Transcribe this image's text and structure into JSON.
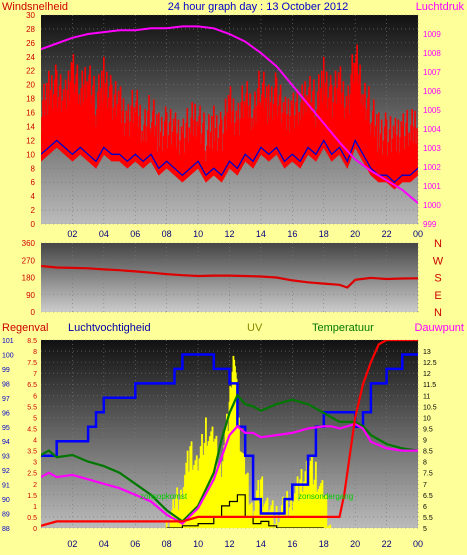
{
  "title": "24 hour graph day : 13 October 2012",
  "colors": {
    "wind": "#ff0000",
    "gust": "#ff0000",
    "wind_avg": "#0000cc",
    "pressure": "#ff00ff",
    "direction": "#dd0000",
    "rain": "#ff0000",
    "humidity": "#0000ff",
    "uv": "#ffff00",
    "solar": "#000000",
    "temperature": "#007700",
    "dewpoint": "#ff00ff",
    "background": "#ffff99",
    "title": "#0000cc"
  },
  "time_ticks": [
    "02",
    "04",
    "06",
    "08",
    "10",
    "12",
    "14",
    "16",
    "18",
    "20",
    "22",
    "00"
  ],
  "chart_data": [
    {
      "type": "line",
      "name": "wind-pressure",
      "xlabel": "",
      "ylabel_left": "Windsnelheid",
      "ylabel_right": "Luchtdruk",
      "x_range": [
        0,
        24
      ],
      "ylim_left": [
        0,
        30
      ],
      "yticks_left": [
        0,
        2,
        4,
        6,
        8,
        10,
        12,
        14,
        16,
        18,
        20,
        22,
        24,
        26,
        28,
        30
      ],
      "ylim_right": [
        999,
        1010
      ],
      "yticks_right": [
        999,
        1000,
        1001,
        1002,
        1003,
        1004,
        1005,
        1006,
        1007,
        1008,
        1009
      ],
      "series": [
        {
          "key": "wind_avg",
          "axis": "left",
          "x": [
            0,
            0.5,
            1,
            1.5,
            2,
            2.5,
            3,
            3.5,
            4,
            4.5,
            5,
            5.5,
            6,
            6.5,
            7,
            7.5,
            8,
            8.5,
            9,
            9.5,
            10,
            10.5,
            11,
            11.5,
            12,
            12.5,
            13,
            13.5,
            14,
            14.5,
            15,
            15.5,
            16,
            16.5,
            17,
            17.5,
            18,
            18.5,
            19,
            19.5,
            20,
            20.5,
            21,
            21.5,
            22,
            22.5,
            23,
            23.5,
            24
          ],
          "y": [
            10,
            11,
            12,
            11,
            10,
            11,
            10,
            9,
            11,
            10,
            10,
            9,
            10,
            9,
            10,
            8,
            9,
            8,
            7,
            8,
            9,
            7,
            8,
            7,
            9,
            8,
            10,
            9,
            11,
            10,
            11,
            9,
            10,
            9,
            11,
            10,
            12,
            10,
            11,
            9,
            12,
            10,
            8,
            7,
            7,
            6,
            7,
            7,
            8
          ]
        },
        {
          "key": "gust",
          "axis": "left",
          "x": [
            0,
            0.5,
            1,
            1.5,
            2,
            2.5,
            3,
            3.5,
            4,
            4.5,
            5,
            5.5,
            6,
            6.5,
            7,
            7.5,
            8,
            8.5,
            9,
            9.5,
            10,
            10.5,
            11,
            11.5,
            12,
            12.5,
            13,
            13.5,
            14,
            14.5,
            15,
            15.5,
            16,
            16.5,
            17,
            17.5,
            18,
            18.5,
            19,
            19.5,
            20,
            20.5,
            21,
            21.5,
            22,
            22.5,
            23,
            23.5,
            24
          ],
          "y": [
            16,
            19,
            20,
            17,
            23,
            18,
            22,
            17,
            21,
            18,
            17,
            15,
            17,
            14,
            16,
            13,
            14,
            13,
            13,
            14,
            16,
            12,
            14,
            13,
            17,
            15,
            18,
            16,
            20,
            17,
            19,
            15,
            17,
            16,
            20,
            17,
            21,
            18,
            20,
            17,
            24,
            19,
            16,
            13,
            13,
            12,
            14,
            13,
            15
          ]
        },
        {
          "key": "pressure",
          "axis": "right",
          "x": [
            0,
            1,
            2,
            3,
            4,
            5,
            6,
            7,
            8,
            9,
            10,
            11,
            12,
            13,
            14,
            15,
            16,
            17,
            18,
            19,
            20,
            21,
            22,
            23,
            24
          ],
          "y": [
            1008.2,
            1008.5,
            1008.8,
            1009.0,
            1009.1,
            1009.2,
            1009.2,
            1009.3,
            1009.3,
            1009.4,
            1009.4,
            1009.3,
            1009.0,
            1008.6,
            1008.0,
            1007.3,
            1006.3,
            1005.3,
            1004.3,
            1003.3,
            1002.4,
            1001.8,
            1001.3,
            1000.8,
            1000.1
          ]
        }
      ]
    },
    {
      "type": "line",
      "name": "wind-direction",
      "x_range": [
        0,
        24
      ],
      "ylim": [
        0,
        360
      ],
      "yticks": [
        0,
        90,
        180,
        270,
        360
      ],
      "compass_labels": [
        "N",
        "W",
        "S",
        "E",
        "N"
      ],
      "series": [
        {
          "key": "direction",
          "x": [
            0,
            1,
            2,
            3,
            4,
            5,
            6,
            7,
            8,
            9,
            10,
            11,
            12,
            13,
            14,
            15,
            16,
            17,
            18,
            19,
            19.5,
            20,
            21,
            22,
            23,
            24
          ],
          "y": [
            240,
            232,
            230,
            228,
            222,
            218,
            212,
            205,
            198,
            192,
            188,
            190,
            190,
            188,
            185,
            180,
            165,
            155,
            148,
            142,
            128,
            168,
            178,
            172,
            175,
            176
          ]
        }
      ]
    },
    {
      "type": "line",
      "name": "rain-humidity-uv-temperature",
      "labels": {
        "rain": "Regenval",
        "humidity": "Luchtvochtigheid",
        "uv": "UV",
        "temperature": "Temperatuur",
        "dewpoint": "Dauwpunt"
      },
      "annotations": [
        "zonsopkomst",
        "zonsondergang"
      ],
      "x_range": [
        0,
        24
      ],
      "ylim_humidity": [
        88,
        101
      ],
      "yticks_humidity": [
        88,
        89,
        90,
        91,
        92,
        93,
        94,
        95,
        96,
        97,
        98,
        99,
        100,
        101
      ],
      "ylim_rain": [
        0,
        8.5
      ],
      "yticks_rain": [
        0,
        0.5,
        1,
        1.5,
        2,
        2.5,
        3,
        3.5,
        4,
        4.5,
        5,
        5.5,
        6,
        6.5,
        7,
        7.5,
        8,
        8.5
      ],
      "ylim_temp": [
        5,
        13.5
      ],
      "yticks_temp": [
        5,
        5.5,
        6,
        6.5,
        7,
        7.5,
        8,
        8.5,
        9,
        9.5,
        10,
        10.5,
        11,
        11.5,
        12,
        12.5,
        13
      ],
      "series": [
        {
          "key": "humidity",
          "axis": "humidity",
          "x": [
            0,
            1,
            2,
            3,
            3.5,
            4,
            5,
            6,
            7,
            8,
            8.5,
            9,
            10,
            10.5,
            11,
            12,
            12.5,
            13,
            13.5,
            14,
            15,
            15.5,
            16,
            17,
            17.5,
            18,
            18.5,
            19,
            20,
            20.5,
            21,
            22,
            23,
            24
          ],
          "y": [
            93,
            94,
            94,
            95,
            96,
            97,
            97,
            98,
            98,
            98,
            99,
            100,
            100,
            100,
            99,
            98,
            95,
            93,
            90,
            89,
            89,
            90,
            91,
            93,
            95,
            96,
            96,
            96,
            95,
            96,
            98,
            99,
            100,
            100
          ]
        },
        {
          "key": "rain",
          "axis": "rain",
          "x": [
            0,
            1,
            2,
            3,
            4,
            5,
            6,
            7,
            8,
            9,
            10,
            11,
            12,
            13,
            14,
            15,
            16,
            17,
            18,
            19,
            19.3,
            19.6,
            20,
            20.5,
            21,
            21.5,
            22,
            23,
            24
          ],
          "y": [
            0.1,
            0.3,
            0.3,
            0.3,
            0.3,
            0.3,
            0.3,
            0.3,
            0.3,
            0.3,
            0.5,
            0.5,
            0.5,
            0.5,
            0.5,
            0.5,
            0.5,
            0.5,
            0.5,
            0.5,
            1.5,
            3,
            5,
            6.5,
            7.5,
            8.3,
            8.5,
            8.5,
            8.5
          ]
        },
        {
          "key": "uv",
          "axis": "rain",
          "x": [
            8,
            8.5,
            9,
            9.5,
            10,
            10.5,
            11,
            11.5,
            12,
            12.3,
            12.6,
            13,
            13.5,
            14,
            14.5,
            15,
            15.5,
            16,
            16.5,
            17,
            17.5,
            18,
            18.5
          ],
          "y": [
            0.3,
            1.5,
            2.5,
            4,
            3.5,
            5,
            4.5,
            3.5,
            6,
            8.5,
            5,
            3,
            1.5,
            2.5,
            1.5,
            1,
            1.5,
            2,
            2.5,
            3.5,
            3,
            2,
            0.5
          ]
        },
        {
          "key": "solar",
          "axis": "rain",
          "x": [
            8,
            9,
            10,
            11,
            11.5,
            12,
            12.5,
            13,
            13.5,
            14,
            14.5,
            15,
            16,
            17,
            18
          ],
          "y": [
            0,
            0.1,
            0.2,
            0.5,
            1,
            1.2,
            1.5,
            0.5,
            0.2,
            0.3,
            0.1,
            0,
            0,
            0,
            0
          ]
        },
        {
          "key": "temperature",
          "axis": "temp",
          "x": [
            0,
            0.5,
            1,
            2,
            3,
            4,
            5,
            6,
            7,
            8,
            9,
            10,
            11,
            11.5,
            12,
            12.5,
            13,
            13.5,
            14,
            15,
            16,
            17,
            18,
            18.5,
            19,
            20,
            20.5,
            21,
            22,
            23,
            24
          ],
          "y": [
            8.3,
            8.5,
            8.2,
            8.3,
            8.0,
            7.8,
            7.5,
            7.0,
            6.5,
            5.8,
            5.3,
            6.0,
            7.5,
            9,
            10.2,
            11,
            10.6,
            10.5,
            10.3,
            10.6,
            10.8,
            10.6,
            10.2,
            10.0,
            9.8,
            9.8,
            9.6,
            9.2,
            8.8,
            8.6,
            8.5
          ]
        },
        {
          "key": "dewpoint",
          "axis": "temp",
          "x": [
            0,
            0.5,
            1,
            2,
            3,
            4,
            5,
            6,
            7,
            8,
            9,
            10,
            11,
            11.5,
            12,
            12.5,
            13,
            13.5,
            14,
            15,
            16,
            17,
            18,
            18.5,
            19,
            20,
            20.5,
            21,
            22,
            23,
            24
          ],
          "y": [
            7.3,
            7.5,
            7.3,
            7.4,
            7.2,
            7.0,
            6.8,
            6.5,
            6.2,
            5.6,
            5.2,
            5.9,
            7.2,
            8.2,
            9.2,
            9.6,
            9.3,
            9.3,
            9.1,
            9.2,
            9.3,
            9.5,
            9.6,
            9.6,
            9.5,
            9.7,
            9.5,
            8.9,
            8.6,
            8.5,
            8.5
          ]
        }
      ]
    }
  ]
}
